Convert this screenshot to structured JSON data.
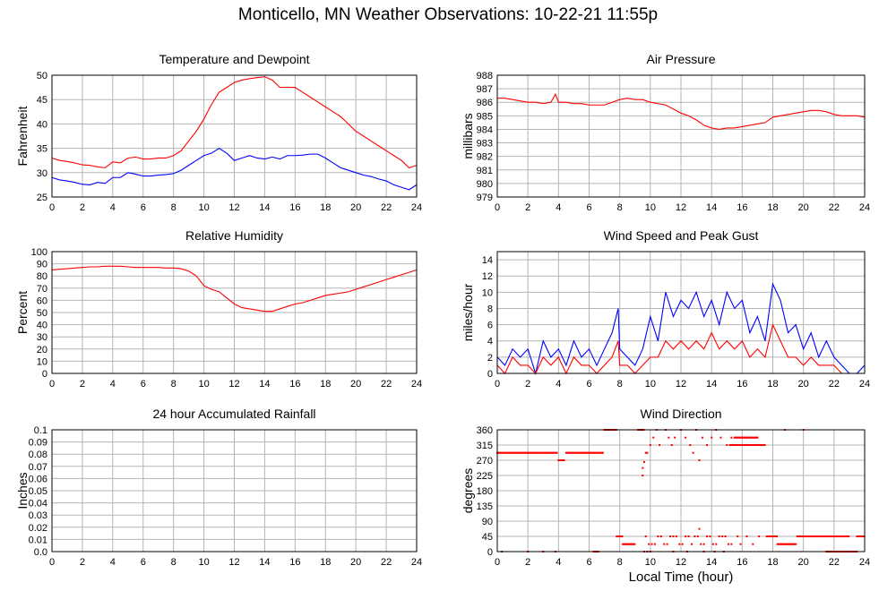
{
  "page_title": "Monticello, MN Weather Observations: 10-22-21 11:55p",
  "x_axis_caption": "Local Time (hour)",
  "chart_data": [
    {
      "id": "temperature-dewpoint",
      "type": "line",
      "title": "Temperature and Dewpoint",
      "ylabel": "Fahrenheit",
      "xlim": [
        0,
        24
      ],
      "ylim": [
        25,
        50
      ],
      "xticks": [
        0,
        2,
        4,
        6,
        8,
        10,
        12,
        14,
        16,
        18,
        20,
        22,
        24
      ],
      "yticks": [
        25,
        30,
        35,
        40,
        45,
        50
      ],
      "grid": true,
      "series": [
        {
          "color": "#ff0000",
          "x": [
            0,
            0.5,
            1,
            1.5,
            2,
            2.5,
            3,
            3.5,
            4,
            4.5,
            5,
            5.5,
            6,
            6.5,
            7,
            7.5,
            8,
            8.5,
            9,
            9.5,
            10,
            10.5,
            11,
            11.5,
            12,
            12.5,
            13,
            13.5,
            14,
            14.5,
            15,
            15.5,
            16,
            16.5,
            17,
            17.5,
            18,
            18.5,
            19,
            19.5,
            20,
            20.5,
            21,
            21.5,
            22,
            22.5,
            23,
            23.5,
            24
          ],
          "y": [
            33,
            32.5,
            32.3,
            32,
            31.6,
            31.5,
            31.2,
            31,
            32.2,
            32,
            33,
            33.2,
            32.8,
            32.8,
            33,
            33,
            33.5,
            34.5,
            36.5,
            38.5,
            41,
            44,
            46.5,
            47.5,
            48.5,
            49,
            49.3,
            49.5,
            49.7,
            49,
            47.5,
            47.5,
            47.5,
            46.5,
            45.5,
            44.5,
            43.5,
            42.5,
            41.5,
            40,
            38.5,
            37.5,
            36.5,
            35.5,
            34.5,
            33.5,
            32.5,
            31,
            31.5
          ]
        },
        {
          "color": "#0000ff",
          "x": [
            0,
            0.5,
            1,
            1.5,
            2,
            2.5,
            3,
            3.5,
            4,
            4.5,
            5,
            5.5,
            6,
            6.5,
            7,
            7.5,
            8,
            8.5,
            9,
            9.5,
            10,
            10.5,
            11,
            11.5,
            12,
            12.5,
            13,
            13.5,
            14,
            14.5,
            15,
            15.5,
            16,
            16.5,
            17,
            17.5,
            18,
            18.5,
            19,
            19.5,
            20,
            20.5,
            21,
            21.5,
            22,
            22.5,
            23,
            23.5,
            24
          ],
          "y": [
            29,
            28.5,
            28.3,
            28,
            27.6,
            27.5,
            28,
            27.8,
            29,
            29,
            30,
            29.7,
            29.3,
            29.3,
            29.5,
            29.6,
            29.8,
            30.5,
            31.5,
            32.5,
            33.5,
            34,
            35,
            34,
            32.5,
            33,
            33.5,
            33,
            32.8,
            33.2,
            32.8,
            33.5,
            33.5,
            33.6,
            33.8,
            33.8,
            33,
            32,
            31,
            30.5,
            30,
            29.5,
            29.2,
            28.7,
            28.3,
            27.5,
            27,
            26.5,
            27.5
          ]
        }
      ]
    },
    {
      "id": "air-pressure",
      "type": "line",
      "title": "Air Pressure",
      "ylabel": "millibars",
      "xlim": [
        0,
        24
      ],
      "ylim": [
        979,
        988
      ],
      "xticks": [
        0,
        2,
        4,
        6,
        8,
        10,
        12,
        14,
        16,
        18,
        20,
        22,
        24
      ],
      "yticks": [
        979,
        980,
        981,
        982,
        983,
        984,
        985,
        986,
        987,
        988
      ],
      "grid": true,
      "series": [
        {
          "color": "#ff0000",
          "x": [
            0,
            0.5,
            1,
            1.5,
            2,
            2.5,
            3,
            3.5,
            3.8,
            4,
            4.5,
            5,
            5.5,
            6,
            6.5,
            7,
            7.5,
            8,
            8.5,
            9,
            9.5,
            10,
            10.5,
            11,
            11.5,
            12,
            12.5,
            13,
            13.5,
            14,
            14.5,
            15,
            15.5,
            16,
            16.5,
            17,
            17.5,
            18,
            18.5,
            19,
            19.5,
            20,
            20.5,
            21,
            21.5,
            22,
            22.5,
            23,
            23.5,
            24
          ],
          "y": [
            986.3,
            986.3,
            986.2,
            986.1,
            986.0,
            986.0,
            985.9,
            986.0,
            986.6,
            986.0,
            986.0,
            985.9,
            985.9,
            985.8,
            985.8,
            985.8,
            986.0,
            986.2,
            986.3,
            986.2,
            986.2,
            986.0,
            985.9,
            985.8,
            985.5,
            985.2,
            985.0,
            984.7,
            984.3,
            984.1,
            984.0,
            984.1,
            984.1,
            984.2,
            984.3,
            984.4,
            984.5,
            984.9,
            985.0,
            985.1,
            985.2,
            985.3,
            985.4,
            985.4,
            985.3,
            985.1,
            985.0,
            985.0,
            985.0,
            984.9
          ]
        }
      ]
    },
    {
      "id": "relative-humidity",
      "type": "line",
      "title": "Relative Humidity",
      "ylabel": "Percent",
      "xlim": [
        0,
        24
      ],
      "ylim": [
        0,
        100
      ],
      "xticks": [
        0,
        2,
        4,
        6,
        8,
        10,
        12,
        14,
        16,
        18,
        20,
        22,
        24
      ],
      "yticks": [
        0,
        10,
        20,
        30,
        40,
        50,
        60,
        70,
        80,
        90,
        100
      ],
      "grid": true,
      "series": [
        {
          "color": "#ff0000",
          "x": [
            0,
            0.5,
            1,
            1.5,
            2,
            2.5,
            3,
            3.5,
            4,
            4.5,
            5,
            5.5,
            6,
            6.5,
            7,
            7.5,
            8,
            8.5,
            9,
            9.5,
            10,
            10.5,
            11,
            11.5,
            12,
            12.5,
            13,
            13.5,
            14,
            14.5,
            15,
            15.5,
            16,
            16.5,
            17,
            17.5,
            18,
            18.5,
            19,
            19.5,
            20,
            20.5,
            21,
            21.5,
            22,
            22.5,
            23,
            23.5,
            24
          ],
          "y": [
            85,
            85.5,
            86,
            86.5,
            87,
            87.5,
            87.5,
            88,
            88,
            88,
            87.5,
            87,
            87,
            87,
            87,
            86.5,
            86.5,
            86,
            84,
            80,
            72,
            69,
            67,
            62,
            57,
            54,
            53,
            52,
            51,
            51,
            53,
            55,
            57,
            58,
            60,
            62,
            64,
            65,
            66,
            67,
            69,
            71,
            73,
            75,
            77,
            79,
            81,
            83,
            85
          ]
        }
      ]
    },
    {
      "id": "wind-speed-gust",
      "type": "line",
      "title": "Wind Speed and Peak Gust",
      "ylabel": "miles/hour",
      "xlim": [
        0,
        24
      ],
      "ylim": [
        0,
        15
      ],
      "xticks": [
        0,
        2,
        4,
        6,
        8,
        10,
        12,
        14,
        16,
        18,
        20,
        22,
        24
      ],
      "yticks": [
        0,
        2,
        4,
        6,
        8,
        10,
        12,
        14
      ],
      "grid": true,
      "series": [
        {
          "color": "#0000ff",
          "x": [
            0,
            0.5,
            1,
            1.5,
            2,
            2.5,
            3,
            3.5,
            4,
            4.5,
            5,
            5.5,
            6,
            6.5,
            7,
            7.5,
            7.9,
            8,
            8.5,
            9,
            9.5,
            10,
            10.5,
            11,
            11.5,
            12,
            12.5,
            13,
            13.5,
            14,
            14.5,
            15,
            15.5,
            16,
            16.5,
            17,
            17.5,
            18,
            18.5,
            19,
            19.5,
            20,
            20.5,
            21,
            21.5,
            22,
            22.5,
            23,
            23.5,
            24
          ],
          "y": [
            2,
            1,
            3,
            2,
            3,
            0,
            4,
            2,
            3,
            1,
            4,
            2,
            3,
            1,
            3,
            5,
            8,
            3,
            2,
            1,
            3,
            7,
            4,
            10,
            7,
            9,
            8,
            10,
            7,
            9,
            6,
            10,
            8,
            9,
            5,
            7,
            4,
            11,
            9,
            5,
            6,
            3,
            5,
            2,
            4,
            2,
            1,
            0,
            0,
            1
          ]
        },
        {
          "color": "#ff0000",
          "x": [
            0,
            0.5,
            1,
            1.5,
            2,
            2.5,
            3,
            3.5,
            4,
            4.5,
            5,
            5.5,
            6,
            6.5,
            7,
            7.5,
            7.9,
            8,
            8.5,
            9,
            9.5,
            10,
            10.5,
            11,
            11.5,
            12,
            12.5,
            13,
            13.5,
            14,
            14.5,
            15,
            15.5,
            16,
            16.5,
            17,
            17.5,
            18,
            18.5,
            19,
            19.5,
            20,
            20.5,
            21,
            21.5,
            22,
            22.5,
            23,
            23.5,
            24
          ],
          "y": [
            1,
            0,
            2,
            1,
            1,
            0,
            2,
            1,
            2,
            0,
            2,
            1,
            1,
            0,
            1,
            2,
            4,
            1,
            1,
            0,
            1,
            2,
            2,
            4,
            3,
            4,
            3,
            4,
            3,
            5,
            3,
            4,
            3,
            4,
            2,
            3,
            2,
            6,
            4,
            2,
            2,
            1,
            2,
            1,
            1,
            1,
            0,
            0,
            0,
            0
          ]
        }
      ]
    },
    {
      "id": "rainfall",
      "type": "line",
      "title": "24 hour Accumulated Rainfall",
      "ylabel": "Inches",
      "xlim": [
        0,
        24
      ],
      "ylim": [
        0,
        0.1
      ],
      "xticks": [
        0,
        2,
        4,
        6,
        8,
        10,
        12,
        14,
        16,
        18,
        20,
        22,
        24
      ],
      "yticks": [
        0.0,
        0.01,
        0.02,
        0.03,
        0.04,
        0.05,
        0.06,
        0.07,
        0.08,
        0.09,
        0.1
      ],
      "ytick_labels": [
        "0.0",
        "0.01",
        "0.02",
        "0.03",
        "0.04",
        "0.05",
        "0.06",
        "0.07",
        "0.08",
        "0.09",
        "0.1"
      ],
      "grid": true,
      "series": [
        {
          "color": "#ff0000",
          "x": [
            0,
            24
          ],
          "y": [
            0,
            0
          ]
        }
      ]
    },
    {
      "id": "wind-direction",
      "type": "scatter",
      "title": "Wind Direction",
      "ylabel": "degrees",
      "xlabel": "Local Time (hour)",
      "xlim": [
        0,
        24
      ],
      "ylim": [
        0,
        360
      ],
      "xticks": [
        0,
        2,
        4,
        6,
        8,
        10,
        12,
        14,
        16,
        18,
        20,
        22,
        24
      ],
      "yticks": [
        0,
        45,
        90,
        135,
        180,
        225,
        270,
        315,
        360
      ],
      "grid": true,
      "series": [
        {
          "color": "#ff0000",
          "segments": [
            {
              "x0": 0.0,
              "x1": 3.9,
              "y": 292
            },
            {
              "x0": 4.0,
              "x1": 4.4,
              "y": 270
            },
            {
              "x0": 4.5,
              "x1": 6.9,
              "y": 292
            },
            {
              "x0": 7.0,
              "x1": 7.8,
              "y": 360
            },
            {
              "x0": 7.8,
              "x1": 8.2,
              "y": 45
            },
            {
              "x0": 8.2,
              "x1": 9.0,
              "y": 22
            },
            {
              "x0": 9.2,
              "x1": 9.6,
              "y": 360
            },
            {
              "x0": 15.2,
              "x1": 17.5,
              "y": 315
            },
            {
              "x0": 17.6,
              "x1": 18.3,
              "y": 45
            },
            {
              "x0": 18.3,
              "x1": 19.5,
              "y": 22
            },
            {
              "x0": 19.6,
              "x1": 23.0,
              "y": 45
            },
            {
              "x0": 23.5,
              "x1": 24.0,
              "y": 45
            },
            {
              "x0": 21.5,
              "x1": 23.5,
              "y": 0
            },
            {
              "x0": 6.3,
              "x1": 6.6,
              "y": 0
            },
            {
              "x0": 15.5,
              "x1": 17.0,
              "y": 337
            }
          ],
          "x": [
            0.3,
            2.0,
            3.0,
            3.8,
            9.5,
            9.6,
            9.7,
            9.8,
            10.0,
            10.2,
            10.4,
            10.6,
            11.0,
            11.2,
            11.4,
            11.6,
            12.0,
            12.3,
            12.6,
            13.0,
            13.4,
            13.7,
            14.0,
            14.3,
            14.6,
            15.0,
            15.3,
            10.1,
            10.5,
            10.9,
            11.3,
            11.7,
            12.1,
            12.5,
            12.9,
            13.3,
            13.7,
            14.1,
            14.5,
            14.9,
            15.3,
            15.7,
            9.7,
            9.9,
            10.3,
            10.7,
            11.1,
            11.5,
            11.9,
            12.3,
            12.7,
            13.1,
            13.5,
            13.9,
            14.3,
            14.7,
            15.1,
            15.9,
            16.3,
            16.7,
            17.1,
            9.6,
            9.8,
            12.8,
            13.2,
            10.0,
            11.5,
            12.4,
            13.5,
            14.2,
            14.8,
            9.5,
            13.2,
            18.8,
            20.0
          ],
          "y": [
            0,
            0,
            0,
            0,
            247,
            265,
            292,
            292,
            315,
            337,
            360,
            315,
            360,
            337,
            315,
            337,
            360,
            337,
            315,
            360,
            337,
            315,
            337,
            360,
            337,
            315,
            337,
            22,
            45,
            22,
            45,
            45,
            22,
            45,
            45,
            22,
            45,
            22,
            45,
            45,
            22,
            45,
            45,
            22,
            22,
            45,
            22,
            45,
            22,
            45,
            22,
            45,
            22,
            45,
            22,
            45,
            22,
            22,
            45,
            22,
            45,
            0,
            0,
            292,
            270,
            0,
            0,
            0,
            0,
            0,
            0,
            225,
            67,
            360,
            360
          ]
        }
      ]
    }
  ]
}
